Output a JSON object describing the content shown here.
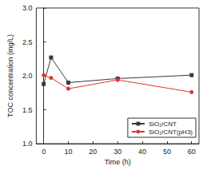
{
  "chart_data": {
    "type": "line",
    "x_label": "Time (h)",
    "y_label": "TOC concentration (mg/L)",
    "series": [
      {
        "name": "SiO₂/CNT",
        "color": "#3a3a3a",
        "marker": "square",
        "line_style": "solid",
        "x": [
          0,
          3,
          10,
          30,
          60
        ],
        "values": [
          1.88,
          2.27,
          1.9,
          1.96,
          2.01
        ]
      },
      {
        "name": "SiO₂/CNT(pH3)",
        "color": "#e8312f",
        "marker": "circle",
        "line_style": "solid",
        "x": [
          0,
          3,
          10,
          30,
          60
        ],
        "values": [
          2.01,
          1.97,
          1.81,
          1.94,
          1.76
        ]
      }
    ],
    "xlim": [
      -3,
      63
    ],
    "xticks": [
      0,
      10,
      20,
      30,
      40,
      50,
      60
    ],
    "ylim": [
      1.0,
      3.0
    ],
    "yticks": [
      {
        "value": 1.0,
        "label": "1.0"
      },
      {
        "value": 1.5,
        "label": "1.5"
      },
      {
        "value": 2.0,
        "label": "2.0"
      },
      {
        "value": 2.5,
        "label": "2.5"
      },
      {
        "value": 3.0,
        "label": "3.0"
      }
    ],
    "grid": false,
    "legend": "lower right"
  }
}
